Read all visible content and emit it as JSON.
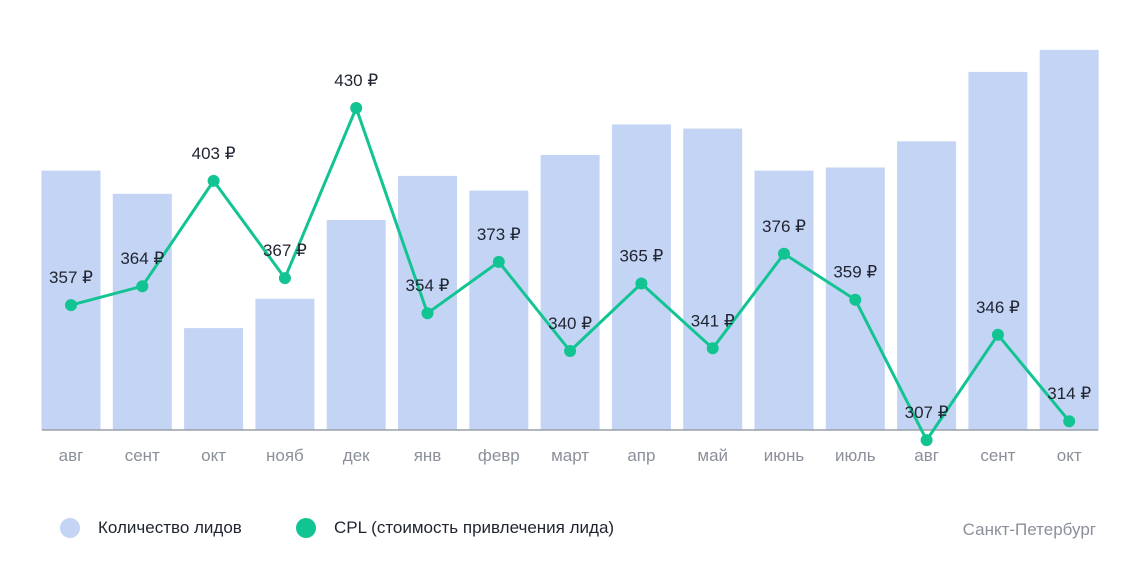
{
  "chart_data": {
    "type": "bar+line",
    "categories": [
      "авг",
      "сент",
      "окт",
      "нояб",
      "дек",
      "янв",
      "февр",
      "март",
      "апр",
      "май",
      "июнь",
      "июль",
      "авг",
      "сент",
      "окт"
    ],
    "series": [
      {
        "name": "Количество лидов",
        "type": "bar",
        "color": "#c4d4f4",
        "values": [
          247,
          225,
          97,
          125,
          200,
          242,
          228,
          262,
          291,
          287,
          247,
          250,
          275,
          341,
          362
        ]
      },
      {
        "name": "CPL (стоимость привлечения лида)",
        "type": "line",
        "color": "#13c493",
        "values": [
          357,
          364,
          403,
          367,
          430,
          354,
          373,
          340,
          365,
          341,
          376,
          359,
          307,
          346,
          314
        ],
        "labels": [
          "357 ₽",
          "364 ₽",
          "403 ₽",
          "367 ₽",
          "430 ₽",
          "354 ₽",
          "373 ₽",
          "340 ₽",
          "365 ₽",
          "341 ₽",
          "376 ₽",
          "359 ₽",
          "307 ₽",
          "346 ₽",
          "314 ₽"
        ]
      }
    ],
    "grid": false,
    "legend_position": "bottom-left"
  },
  "legend": {
    "bars_label": "Количество лидов",
    "line_label": "CPL (стоимость привлечения лида)"
  },
  "region": "Санкт-Петербург"
}
